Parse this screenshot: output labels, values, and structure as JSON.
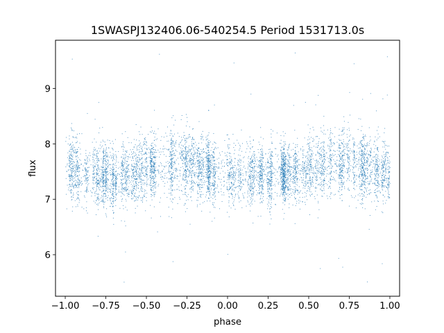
{
  "chart_data": {
    "type": "scatter",
    "title": "1SWASPJ132406.06-540254.5 Period 1531713.0s",
    "xlabel": "phase",
    "ylabel": "flux",
    "xlim": [
      -1.06,
      1.06
    ],
    "ylim": [
      5.25,
      9.87
    ],
    "x_ticks": [
      -1.0,
      -0.75,
      -0.5,
      -0.25,
      0.0,
      0.25,
      0.5,
      0.75,
      1.0
    ],
    "x_tick_labels": [
      "−1.00",
      "−0.75",
      "−0.50",
      "−0.25",
      "0.00",
      "0.25",
      "0.50",
      "0.75",
      "1.00"
    ],
    "y_ticks": [
      6,
      7,
      8,
      9
    ],
    "y_tick_labels": [
      "6",
      "7",
      "8",
      "9"
    ],
    "grid": false,
    "legend": "none",
    "marker_color": "#1f77b4",
    "series_description": "phase-folded light curve, phase range -1 to 1 (two cycles), flux mostly between 7.0 and 8.1",
    "profile": {
      "phase": [
        -1.0,
        -0.9,
        -0.8,
        -0.7,
        -0.6,
        -0.5,
        -0.4,
        -0.3,
        -0.2,
        -0.1,
        0.0,
        0.1,
        0.2,
        0.3,
        0.4,
        0.5,
        0.6,
        0.7,
        0.8,
        0.9,
        1.0
      ],
      "median_flux": [
        7.55,
        7.5,
        7.45,
        7.4,
        7.45,
        7.55,
        7.65,
        7.7,
        7.6,
        7.5,
        7.45,
        7.45,
        7.45,
        7.45,
        7.5,
        7.55,
        7.65,
        7.7,
        7.6,
        7.5,
        7.5
      ],
      "spread": [
        0.3,
        0.28,
        0.27,
        0.27,
        0.27,
        0.28,
        0.3,
        0.3,
        0.3,
        0.28,
        0.28,
        0.27,
        0.27,
        0.27,
        0.27,
        0.28,
        0.3,
        0.3,
        0.3,
        0.28,
        0.3
      ]
    },
    "outlier_flux_range": [
      5.5,
      9.7
    ]
  }
}
